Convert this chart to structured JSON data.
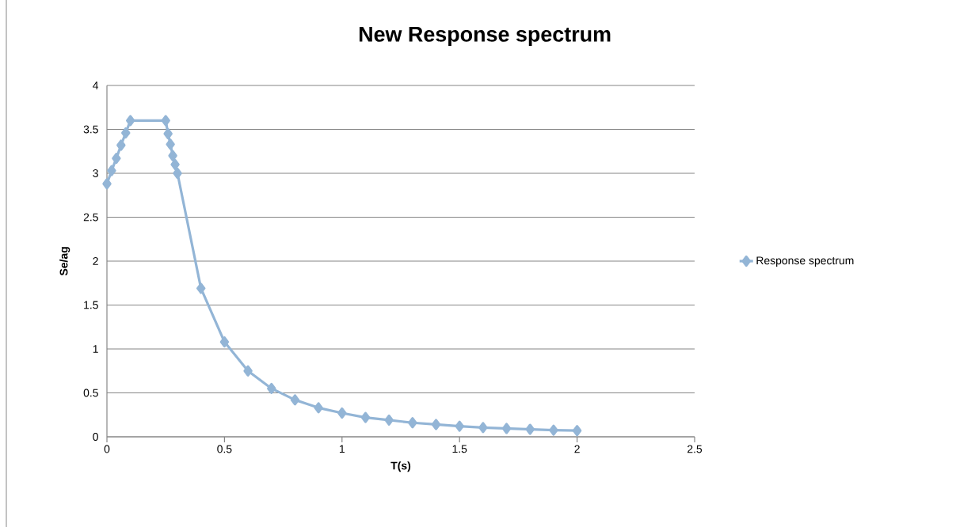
{
  "chart_data": {
    "type": "line",
    "title": "New Response spectrum",
    "xlabel": "T(s)",
    "ylabel": "Se/ag",
    "x": [
      0,
      0.02,
      0.04,
      0.06,
      0.08,
      0.1,
      0.25,
      0.26,
      0.27,
      0.28,
      0.29,
      0.3,
      0.4,
      0.5,
      0.6,
      0.7,
      0.8,
      0.9,
      1.0,
      1.1,
      1.2,
      1.3,
      1.4,
      1.5,
      1.6,
      1.7,
      1.8,
      1.9,
      2.0
    ],
    "series": [
      {
        "name": "Response spectrum",
        "color": "#93b5d6",
        "values": [
          2.88,
          3.03,
          3.17,
          3.32,
          3.46,
          3.6,
          3.6,
          3.45,
          3.33,
          3.2,
          3.1,
          3.0,
          1.69,
          1.08,
          0.75,
          0.55,
          0.42,
          0.33,
          0.27,
          0.22,
          0.19,
          0.16,
          0.14,
          0.12,
          0.105,
          0.095,
          0.085,
          0.075,
          0.07
        ]
      }
    ],
    "xlim": [
      0,
      2.5
    ],
    "ylim": [
      0,
      4
    ],
    "xticks": [
      0,
      0.5,
      1,
      1.5,
      2,
      2.5
    ],
    "yticks": [
      0,
      0.5,
      1,
      1.5,
      2,
      2.5,
      3,
      3.5,
      4
    ],
    "grid": "y",
    "legend": "right",
    "marker": "diamond",
    "line_style": "solid"
  }
}
